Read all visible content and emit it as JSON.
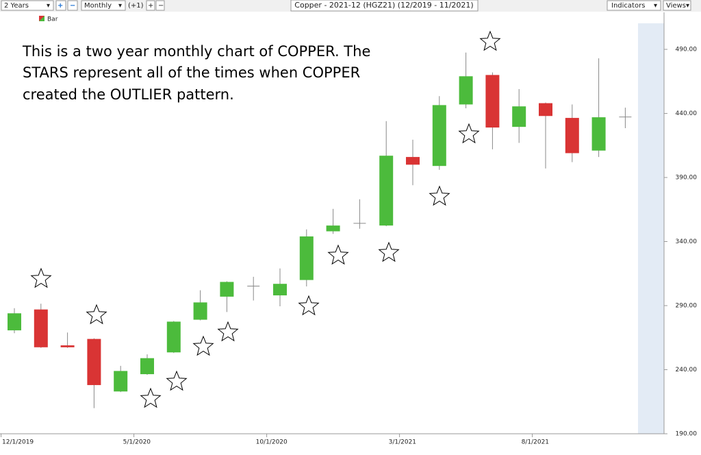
{
  "toolbar": {
    "range": "2 Years",
    "interval": "Monthly",
    "offset": "(+1)",
    "title": "Copper - 2021-12 (HGZ21) (12/2019 - 11/2021)",
    "indicators": "Indicators",
    "views": "Views"
  },
  "chart_data": {
    "type": "candlestick",
    "annotation": [
      "This is a two year monthly chart of COPPER.  The",
      "STARS represent all of the times when COPPER",
      "created the OUTLIER pattern."
    ],
    "legend": "Bar",
    "categories": [
      "12/1/2019",
      null,
      null,
      null,
      null,
      "5/1/2020",
      null,
      null,
      null,
      null,
      "10/1/2020",
      null,
      null,
      null,
      null,
      "3/1/2021",
      null,
      null,
      null,
      null,
      "8/1/2021",
      null,
      null,
      null
    ],
    "open": [
      270.7,
      287,
      259,
      264,
      223,
      236.5,
      253.5,
      279,
      297,
      305.5,
      298,
      310,
      348,
      354,
      352.5,
      406,
      399,
      447,
      470,
      429.5,
      448,
      436.5,
      411,
      437.5
    ],
    "high": [
      288,
      291.5,
      269,
      264.5,
      243,
      252,
      278,
      302,
      309,
      312.5,
      319,
      349.5,
      365.5,
      373,
      434,
      419.5,
      453.5,
      487.5,
      472,
      459,
      448.5,
      447,
      483,
      444.5
    ],
    "low": [
      268.5,
      257,
      257,
      210,
      222.5,
      236,
      253,
      278.5,
      285,
      294,
      289.5,
      305,
      346,
      350,
      352,
      384,
      396,
      444,
      412,
      417,
      397,
      402,
      406,
      428.5
    ],
    "close": [
      284,
      257.5,
      257.5,
      228,
      239,
      249,
      277.5,
      292.5,
      308.5,
      305,
      307,
      344,
      352.5,
      354.5,
      407,
      400,
      446.5,
      469,
      429,
      445.5,
      438,
      409,
      437,
      437.5
    ],
    "up_color": "#4cbb3c",
    "down_color": "#d93434",
    "ylim": [
      190,
      519
    ],
    "yticks": [
      {
        "value": 190,
        "label": "190.00"
      },
      {
        "value": 240,
        "label": "240.00"
      },
      {
        "value": 290,
        "label": "290.00"
      },
      {
        "value": 340,
        "label": "340.00"
      },
      {
        "value": 390,
        "label": "390.00"
      },
      {
        "value": 440,
        "label": "440.00"
      },
      {
        "value": 490,
        "label": "490.00"
      }
    ]
  }
}
